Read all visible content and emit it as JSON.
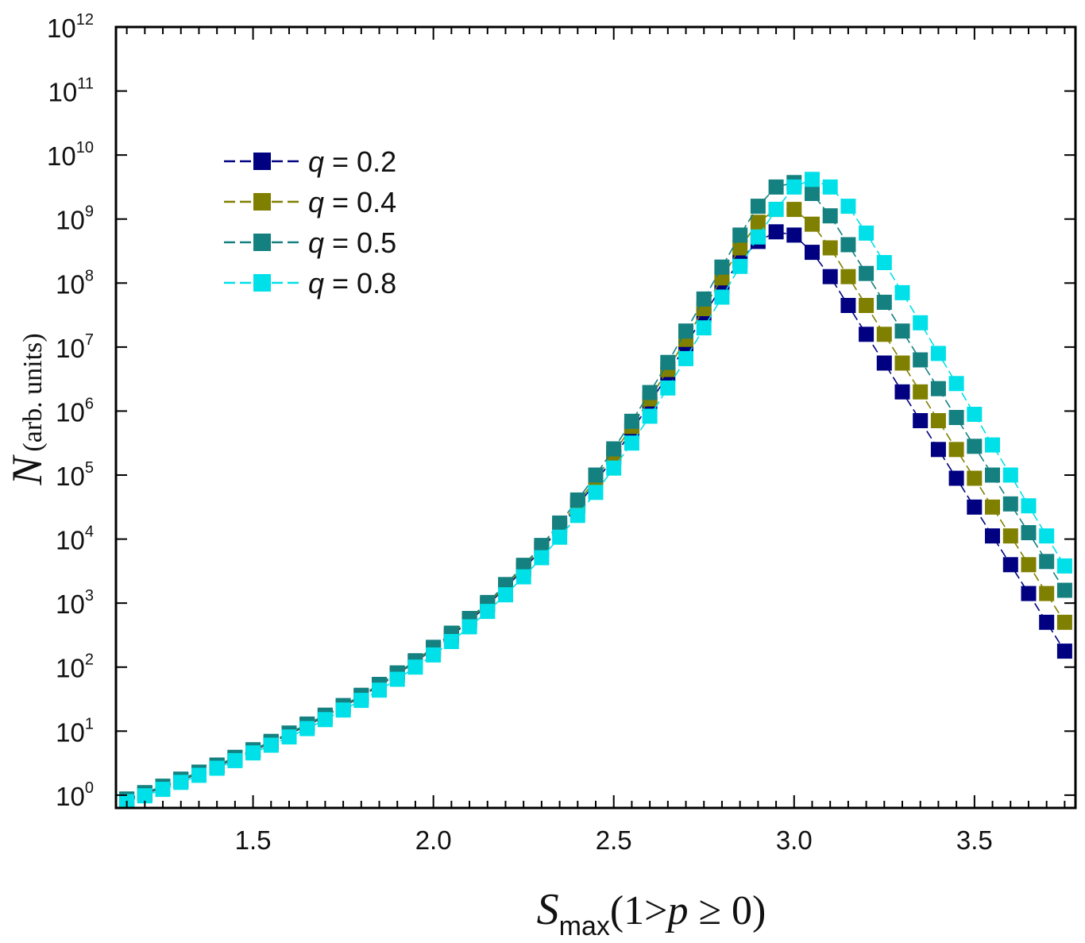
{
  "chart_data": {
    "type": "scatter",
    "title": "",
    "xlabel": {
      "main": "S",
      "sub": "max",
      "condition": "(1>p ≥ 0)",
      "condition_prefix": "(1>",
      "condition_var": "p",
      "condition_suffix": " ≥ 0)"
    },
    "ylabel": {
      "main": "N",
      "units": "(arb. units)"
    },
    "xlim": [
      1.12,
      3.78
    ],
    "ylim_log10": [
      -0.2,
      12
    ],
    "yscale": "log",
    "x_ticks": [
      1.5,
      2.0,
      2.5,
      3.0,
      3.5
    ],
    "x_tick_labels": [
      "1.5",
      "2.0",
      "2.5",
      "3.0",
      "3.5"
    ],
    "y_tick_exponents": [
      0,
      1,
      2,
      3,
      4,
      5,
      6,
      7,
      8,
      9,
      10,
      11,
      12
    ],
    "y_tick_base": "10",
    "legend_position": "upper-left",
    "x": [
      1.15,
      1.2,
      1.25,
      1.3,
      1.35,
      1.4,
      1.45,
      1.5,
      1.55,
      1.6,
      1.65,
      1.7,
      1.75,
      1.8,
      1.85,
      1.9,
      1.95,
      2.0,
      2.05,
      2.1,
      2.15,
      2.2,
      2.25,
      2.3,
      2.35,
      2.4,
      2.45,
      2.5,
      2.55,
      2.6,
      2.65,
      2.7,
      2.75,
      2.8,
      2.85,
      2.9,
      2.95,
      3.0,
      3.05,
      3.1,
      3.15,
      3.2,
      3.25,
      3.3,
      3.35,
      3.4,
      3.45,
      3.5,
      3.55,
      3.6,
      3.65,
      3.7,
      3.75
    ],
    "series": [
      {
        "name": "q = 0.2",
        "label_var": "q",
        "label_value": " = 0.2",
        "color": "#000080",
        "log10_values": [
          -0.08,
          0.02,
          0.12,
          0.23,
          0.34,
          0.45,
          0.57,
          0.69,
          0.82,
          0.95,
          1.09,
          1.23,
          1.38,
          1.54,
          1.71,
          1.89,
          2.08,
          2.28,
          2.49,
          2.72,
          2.97,
          3.24,
          3.53,
          3.84,
          4.17,
          4.52,
          4.89,
          5.28,
          5.69,
          6.12,
          6.57,
          7.03,
          7.5,
          7.95,
          8.35,
          8.65,
          8.8,
          8.75,
          8.48,
          8.1,
          7.65,
          7.2,
          6.75,
          6.3,
          5.85,
          5.4,
          4.95,
          4.5,
          4.05,
          3.6,
          3.15,
          2.7,
          2.25
        ]
      },
      {
        "name": "q = 0.4",
        "label_var": "q",
        "label_value": " = 0.4",
        "color": "#808000",
        "log10_values": [
          -0.07,
          0.03,
          0.13,
          0.24,
          0.35,
          0.46,
          0.58,
          0.7,
          0.83,
          0.96,
          1.1,
          1.24,
          1.39,
          1.55,
          1.72,
          1.9,
          2.09,
          2.29,
          2.51,
          2.74,
          2.99,
          3.26,
          3.56,
          3.87,
          4.21,
          4.56,
          4.94,
          5.34,
          5.76,
          6.19,
          6.65,
          7.12,
          7.6,
          8.08,
          8.55,
          8.95,
          9.15,
          9.15,
          8.92,
          8.55,
          8.1,
          7.65,
          7.2,
          6.75,
          6.3,
          5.85,
          5.4,
          4.95,
          4.5,
          4.05,
          3.6,
          3.15,
          2.7
        ]
      },
      {
        "name": "q = 0.5",
        "label_var": "q",
        "label_value": " = 0.5",
        "color": "#148080",
        "log10_values": [
          -0.06,
          0.04,
          0.14,
          0.25,
          0.36,
          0.47,
          0.59,
          0.71,
          0.84,
          0.97,
          1.11,
          1.25,
          1.4,
          1.56,
          1.73,
          1.91,
          2.1,
          2.31,
          2.53,
          2.76,
          3.01,
          3.29,
          3.59,
          3.9,
          4.25,
          4.61,
          5.0,
          5.41,
          5.84,
          6.29,
          6.76,
          7.25,
          7.75,
          8.25,
          8.75,
          9.2,
          9.5,
          9.57,
          9.4,
          9.05,
          8.6,
          8.15,
          7.7,
          7.25,
          6.8,
          6.35,
          5.9,
          5.45,
          5.0,
          4.55,
          4.1,
          3.65,
          3.2
        ]
      },
      {
        "name": "q = 0.8",
        "label_var": "q",
        "label_value": " = 0.8",
        "color": "#00e0e8",
        "log10_values": [
          -0.1,
          -0.01,
          0.09,
          0.2,
          0.31,
          0.42,
          0.54,
          0.66,
          0.78,
          0.91,
          1.04,
          1.18,
          1.33,
          1.48,
          1.64,
          1.81,
          2.0,
          2.19,
          2.4,
          2.63,
          2.87,
          3.13,
          3.41,
          3.71,
          4.03,
          4.37,
          4.73,
          5.11,
          5.5,
          5.92,
          6.36,
          6.82,
          7.3,
          7.78,
          8.26,
          8.72,
          9.15,
          9.5,
          9.62,
          9.5,
          9.2,
          8.78,
          8.32,
          7.85,
          7.38,
          6.9,
          6.43,
          5.95,
          5.47,
          5.0,
          4.52,
          4.05,
          3.58
        ]
      }
    ]
  }
}
